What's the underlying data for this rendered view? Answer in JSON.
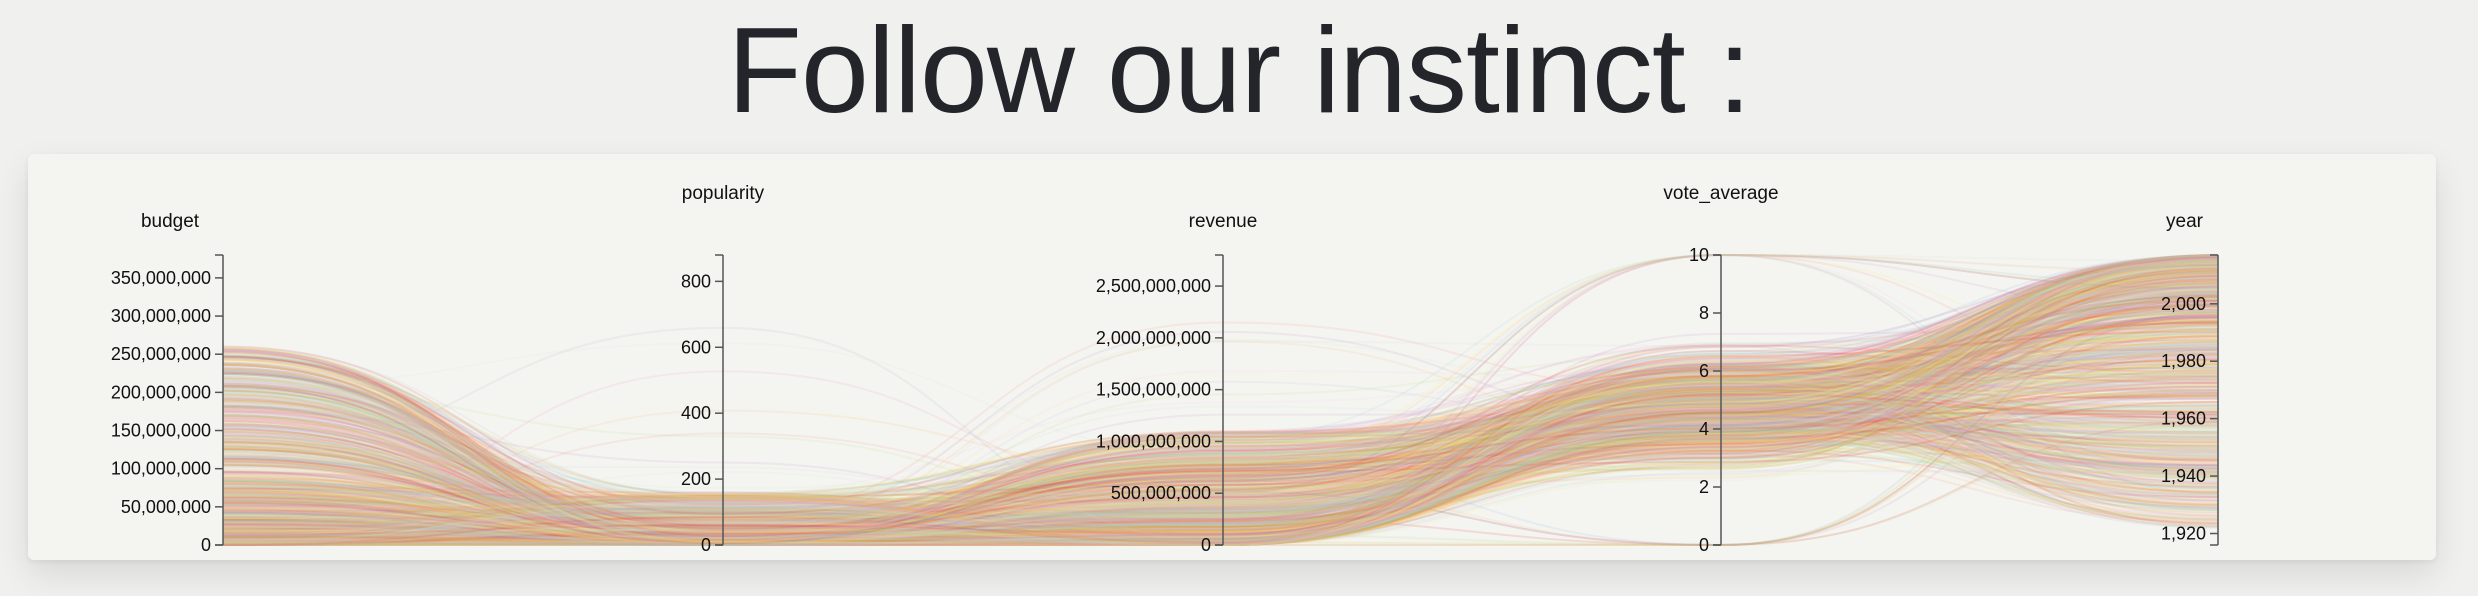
{
  "page": {
    "title": "Follow our instinct :"
  },
  "chart_data": {
    "type": "parallel-coordinates",
    "title": "",
    "axes": [
      {
        "name": "budget",
        "domain": [
          0,
          380000000
        ],
        "ticks": [
          0,
          50000000,
          100000000,
          150000000,
          200000000,
          250000000,
          300000000,
          350000000
        ],
        "tick_labels": [
          "0",
          "50,000,000",
          "100,000,000",
          "150,000,000",
          "200,000,000",
          "250,000,000",
          "300,000,000",
          "350,000,000"
        ]
      },
      {
        "name": "popularity",
        "domain": [
          0,
          880
        ],
        "ticks": [
          0,
          200,
          400,
          600,
          800
        ],
        "tick_labels": [
          "0",
          "200",
          "400",
          "600",
          "800"
        ]
      },
      {
        "name": "revenue",
        "domain": [
          0,
          2800000000
        ],
        "ticks": [
          0,
          500000000,
          1000000000,
          1500000000,
          2000000000,
          2500000000
        ],
        "tick_labels": [
          "0",
          "500,000,000",
          "1,000,000,000",
          "1,500,000,000",
          "2,000,000,000",
          "2,500,000,000"
        ]
      },
      {
        "name": "vote_average",
        "domain": [
          0,
          10
        ],
        "ticks": [
          0,
          2,
          4,
          6,
          8,
          10
        ],
        "tick_labels": [
          "0",
          "2",
          "4",
          "6",
          "8",
          "10"
        ]
      },
      {
        "name": "year",
        "domain": [
          1916,
          2017
        ],
        "ticks": [
          1920,
          1940,
          1960,
          1980,
          2000
        ],
        "tick_labels": [
          "1,920",
          "1,940",
          "1,960",
          "1,980",
          "2,000"
        ]
      }
    ],
    "line_colors": [
      "#8dd3c7",
      "#ffffb3",
      "#bebada",
      "#fb8072",
      "#80b1d3",
      "#fdb462",
      "#b3de69",
      "#fccde5",
      "#d9d9d9",
      "#bc80bd",
      "#ccebc5",
      "#ffed6f",
      "#e41a1c",
      "#f781bf",
      "#e6ab02"
    ],
    "line_opacity": 0.12,
    "series_note_count": 1400
  }
}
